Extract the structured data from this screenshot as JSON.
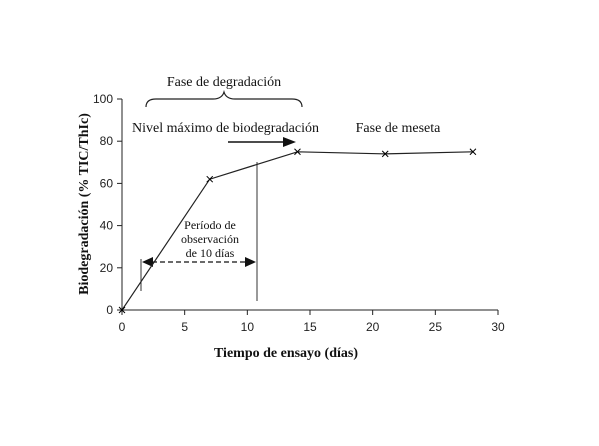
{
  "chart_data": {
    "type": "line",
    "xlabel": "Tiempo de ensayo (días)",
    "ylabel": "Biodegradación (% TIC/ThIc)",
    "xlim": [
      0,
      30
    ],
    "ylim": [
      0,
      100
    ],
    "xticks": [
      0,
      5,
      10,
      15,
      20,
      25,
      30
    ],
    "yticks": [
      0,
      20,
      40,
      60,
      80,
      100
    ],
    "grid": false,
    "series": [
      {
        "x": [
          0,
          7,
          14,
          21,
          28
        ],
        "y": [
          0,
          62,
          75,
          74,
          75
        ],
        "marker": "x",
        "color": "#000000"
      }
    ],
    "annotations": {
      "degradation_phase": "Fase de degradación",
      "max_level": "Nivel máximo de biodegradación",
      "plateau_phase": "Fase de meseta",
      "observation_line1": "Período de",
      "observation_line2": "observación",
      "observation_line3": "de 10 días"
    }
  }
}
